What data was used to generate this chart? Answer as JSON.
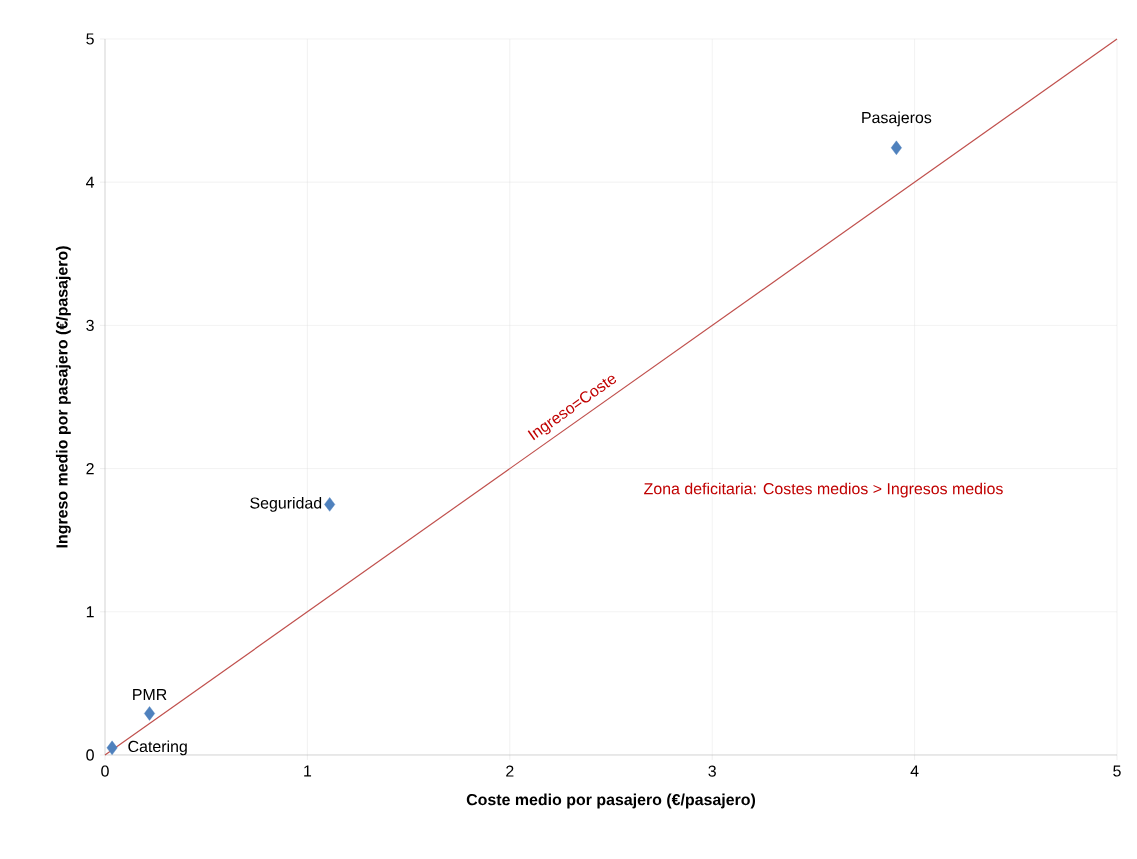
{
  "chart_data": {
    "type": "scatter",
    "xlabel": "Coste medio  por pasajero (€/pasajero)",
    "ylabel": "Ingreso medio por pasajero (€/pasajero)",
    "xlim": [
      0,
      5
    ],
    "ylim": [
      0,
      5
    ],
    "xticks": [
      0,
      1,
      2,
      3,
      4,
      5
    ],
    "yticks": [
      0,
      1,
      2,
      3,
      4,
      5
    ],
    "grid": true,
    "series": [
      {
        "color": "#4f81bd",
        "marker": "diamond",
        "x": [
          3.91,
          1.11,
          0.22,
          0.035
        ],
        "values": [
          4.24,
          1.75,
          0.29,
          0.05
        ]
      },
      {
        "type": "line",
        "name": "Ingreso=Coste",
        "color": "#c0504d",
        "marker": "none",
        "x": [
          0,
          5
        ],
        "values": [
          0,
          5
        ]
      }
    ],
    "annotations": [
      {
        "text": "Pasajeros",
        "x": 3.91,
        "y": 4.24
      },
      {
        "text": "Seguridad",
        "x": 1.11,
        "y": 1.75
      },
      {
        "text": "PMR",
        "x": 0.22,
        "y": 0.29
      },
      {
        "text": "Catering",
        "x": 0.035,
        "y": 0.05
      },
      "Zona deficitaria: Costes medios > Ingresos medios"
    ]
  }
}
